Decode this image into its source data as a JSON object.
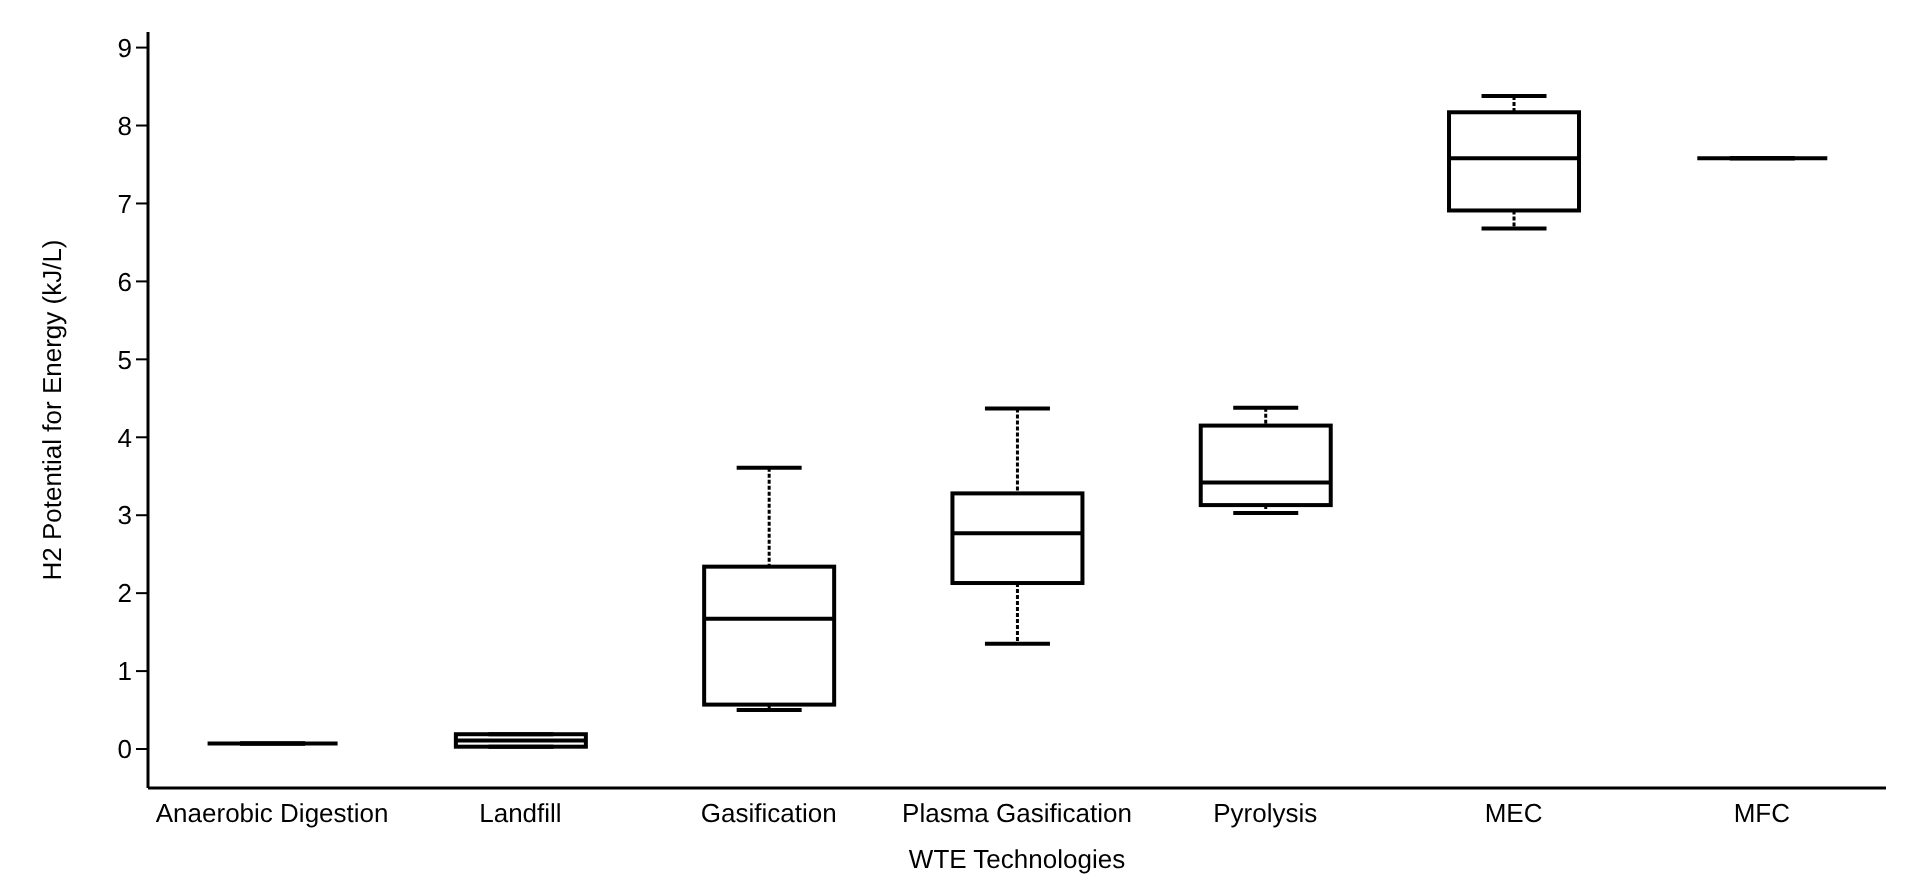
{
  "chart_data": {
    "type": "box",
    "xlabel": "WTE Technologies",
    "ylabel": "H2 Potential for Energy (kJ/L)",
    "categories": [
      "Anaerobic Digestion",
      "Landfill",
      "Gasification",
      "Plasma Gasification",
      "Pyrolysis",
      "MEC",
      "MFC"
    ],
    "boxes": [
      {
        "low": 0.07,
        "q1": 0.07,
        "median": 0.07,
        "q3": 0.07,
        "high": 0.07
      },
      {
        "low": 0.03,
        "q1": 0.03,
        "median": 0.11,
        "q3": 0.19,
        "high": 0.19
      },
      {
        "low": 0.5,
        "q1": 0.57,
        "median": 1.67,
        "q3": 2.34,
        "high": 3.61
      },
      {
        "low": 1.35,
        "q1": 2.13,
        "median": 2.77,
        "q3": 3.28,
        "high": 4.37
      },
      {
        "low": 3.03,
        "q1": 3.13,
        "median": 3.42,
        "q3": 4.15,
        "high": 4.38
      },
      {
        "low": 6.68,
        "q1": 6.91,
        "median": 7.58,
        "q3": 8.17,
        "high": 8.38
      },
      {
        "low": 7.58,
        "q1": 7.58,
        "median": 7.58,
        "q3": 7.58,
        "high": 7.58
      }
    ],
    "color": "#000000",
    "ylim": [
      -0.5,
      9.2
    ],
    "yticks": [
      0,
      1,
      2,
      3,
      4,
      5,
      6,
      7,
      8,
      9
    ],
    "grid": false
  }
}
